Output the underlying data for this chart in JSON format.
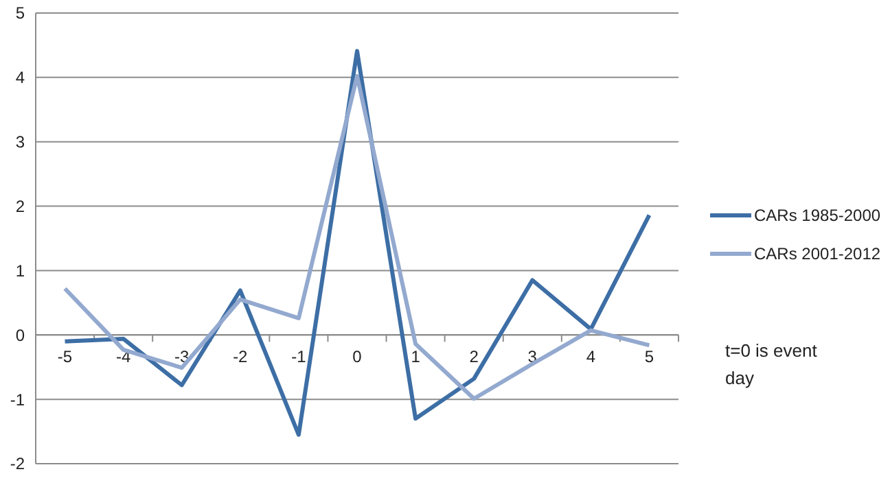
{
  "chart_data": {
    "type": "line",
    "categories": [
      "-5",
      "-4",
      "-3",
      "-2",
      "-1",
      "0",
      "1",
      "2",
      "3",
      "4",
      "5"
    ],
    "series": [
      {
        "name": "CARs 1985-2000",
        "color": "#3d6ea5",
        "values": [
          -0.1,
          -0.06,
          -0.78,
          0.69,
          -1.55,
          4.41,
          -1.3,
          -0.68,
          0.85,
          0.09,
          1.86
        ]
      },
      {
        "name": "CARs 2001-2012",
        "color": "#93a9cf",
        "values": [
          0.72,
          -0.23,
          -0.51,
          0.55,
          0.26,
          4.02,
          -0.14,
          -0.99,
          -0.45,
          0.07,
          -0.16
        ]
      }
    ],
    "ylim": [
      -2,
      5
    ],
    "yticks": [
      -2,
      -1,
      0,
      1,
      2,
      3,
      4,
      5
    ],
    "grid": "y",
    "legend": "right",
    "marker": "none",
    "line_style": "solid",
    "annotations": [
      "t=0 is event day"
    ]
  }
}
